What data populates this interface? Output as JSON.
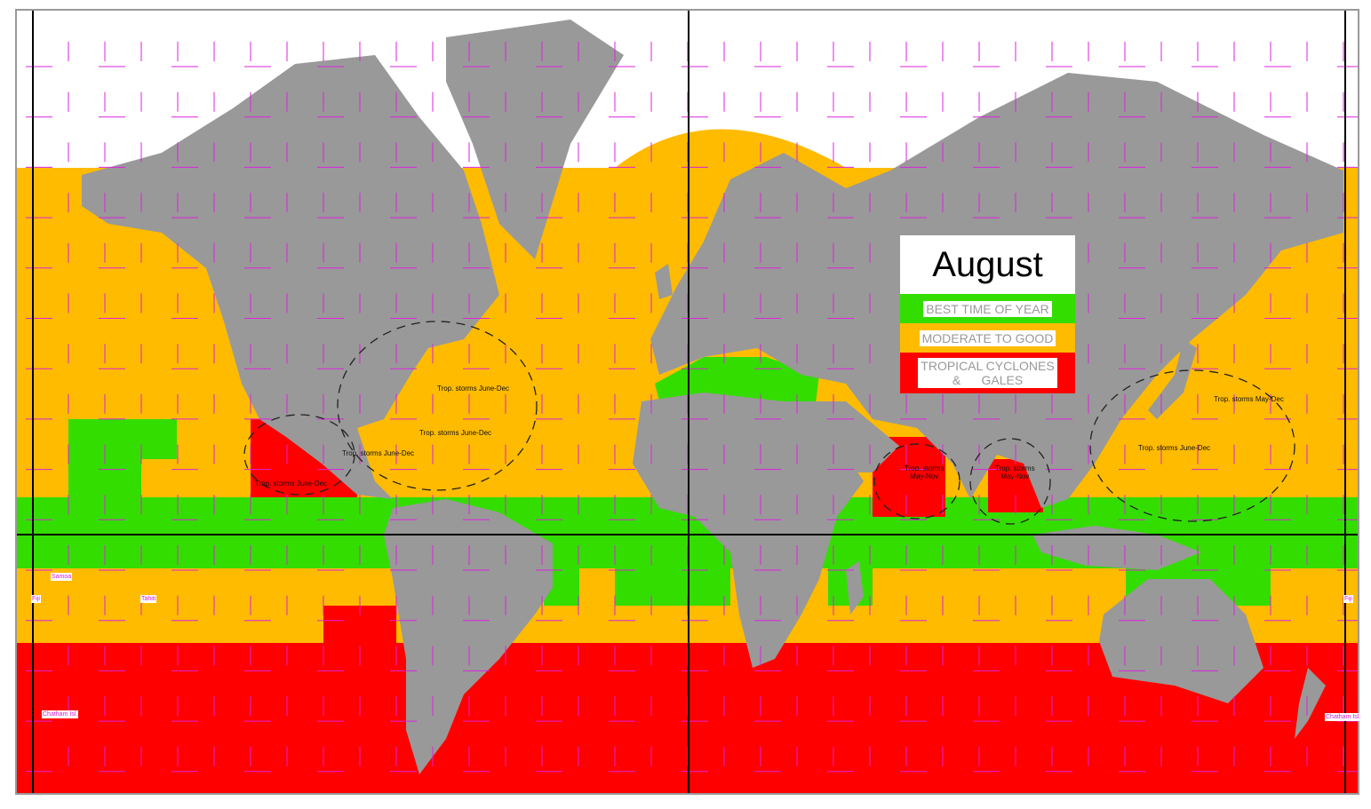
{
  "legend": {
    "title": "August",
    "items": [
      {
        "label": "BEST TIME OF YEAR",
        "color": "#33dd00"
      },
      {
        "label": "MODERATE TO GOOD",
        "color": "#ffbb00"
      },
      {
        "label": "TROPICAL CYCLONES & GALES",
        "line1": "TROPICAL CYCLONES",
        "line2": "&      GALES",
        "color": "#ff0000"
      }
    ]
  },
  "annotations": {
    "atl1": "Trop. storms June-Dec",
    "atl2": "Trop. storms June-Dec",
    "gulf": "Trop. storms June-Dec",
    "epac": "Trop. storms June-Dec",
    "arab1": "Trop. storms",
    "arab2": "May-Nov",
    "bengal1": "Trop. storms",
    "bengal2": "May-Nov",
    "wpac1": "Trop. storms May-Dec",
    "wpac2": "Trop. storms June-Dec"
  },
  "islands": {
    "samoa": "Samoa",
    "fiji_left": "Fiji",
    "tahiti": "Tahiti",
    "chatham_left": "Chatham Isl.",
    "fiji_right": "Fiji",
    "chatham_right": "Chatham Isl."
  },
  "colors": {
    "land": "#999999",
    "grid": "#dd22dd",
    "best": "#33dd00",
    "moderate": "#ffbb00",
    "cyclones": "#ff0000"
  }
}
